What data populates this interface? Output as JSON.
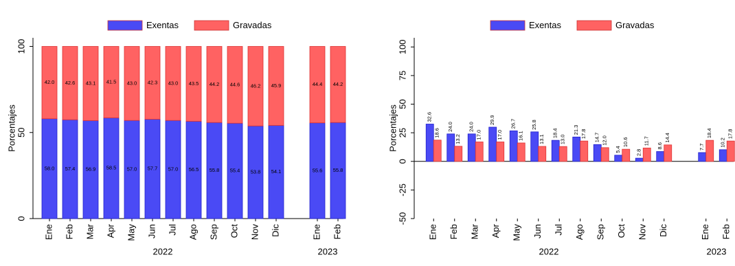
{
  "chart_data": [
    {
      "type": "bar",
      "stacked": true,
      "y_label": "Porcentajes",
      "categories": [
        "Ene",
        "Feb",
        "Mar",
        "Apr",
        "May",
        "Jun",
        "Jul",
        "Ago",
        "Sep",
        "Oct",
        "Nov",
        "Dic",
        null,
        "Ene",
        "Feb"
      ],
      "groups": [
        "2022",
        "2023"
      ],
      "series": [
        {
          "name": "Exentas",
          "color": "#4a4af5",
          "values": [
            58.0,
            57.4,
            56.9,
            58.5,
            57.0,
            57.7,
            57.0,
            56.5,
            55.8,
            55.4,
            53.8,
            54.1,
            null,
            55.6,
            55.8
          ],
          "value_labels": [
            "58.0",
            "57.4",
            "56.9",
            "58.5",
            "57.0",
            "57.7",
            "57.0",
            "56.5",
            "55.8",
            "55.4",
            "53.8",
            "54.1",
            null,
            "55.6",
            "55.8"
          ]
        },
        {
          "name": "Gravadas",
          "color": "#ff6262",
          "values": [
            42.0,
            42.6,
            43.1,
            41.5,
            43.0,
            42.3,
            43.0,
            43.5,
            44.2,
            44.6,
            46.2,
            45.9,
            null,
            44.4,
            44.2
          ],
          "value_labels": [
            "42.0",
            "42.6",
            "43.1",
            "41.5",
            "43.0",
            "42.3",
            "43.0",
            "43.5",
            "44.2",
            "44.6",
            "46.2",
            "45.9",
            null,
            "44.4",
            "44.2"
          ]
        }
      ],
      "ylim": [
        0,
        105
      ],
      "yticks": [
        0,
        50,
        100
      ]
    },
    {
      "type": "bar",
      "stacked": false,
      "y_label": "Porcentajes",
      "categories": [
        "Ene",
        "Feb",
        "Mar",
        "Apr",
        "May",
        "Jun",
        "Jul",
        "Ago",
        "Sep",
        "Oct",
        "Nov",
        "Dic",
        null,
        "Ene",
        "Feb"
      ],
      "groups": [
        "2022",
        "2023"
      ],
      "series": [
        {
          "name": "Exentas",
          "color": "#4a4af5",
          "values": [
            32.6,
            24.0,
            24.0,
            29.9,
            26.7,
            25.8,
            18.4,
            21.3,
            14.7,
            5.4,
            2.8,
            8.6,
            null,
            7.7,
            10.2
          ],
          "value_labels": [
            "32.6",
            "24.0",
            "24.0",
            "29.9",
            "26.7",
            "25.8",
            "18.4",
            "21.3",
            "14.7",
            "5.4",
            "2.8",
            "8.6",
            null,
            "7.7",
            "10.2"
          ]
        },
        {
          "name": "Gravadas",
          "color": "#ff6262",
          "values": [
            18.6,
            13.2,
            17.0,
            17.0,
            16.1,
            13.1,
            13.0,
            17.8,
            12.0,
            10.6,
            11.7,
            14.4,
            null,
            18.4,
            17.8
          ],
          "value_labels": [
            "18.6",
            "13.2",
            "17.0",
            "17.0",
            "16.1",
            "13.1",
            "13.0",
            "17.8",
            "12.0",
            "10.6",
            "11.7",
            "14.4",
            null,
            "18.4",
            "17.8"
          ]
        }
      ],
      "ylim": [
        -50,
        108
      ],
      "yticks": [
        -50,
        -25,
        0,
        25,
        50,
        75,
        100
      ]
    }
  ]
}
